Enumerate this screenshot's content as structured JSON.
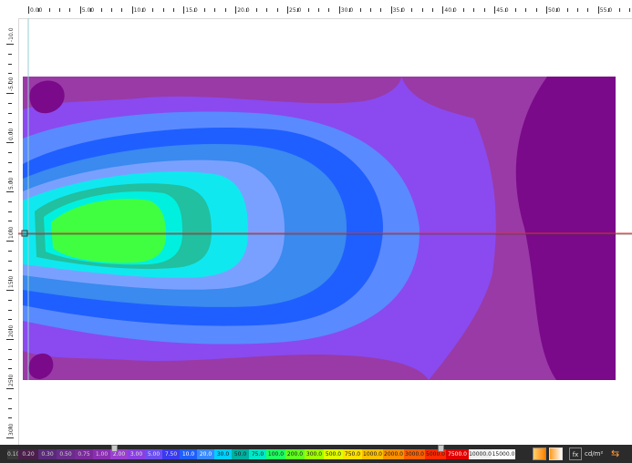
{
  "rulers": {
    "top_labels": [
      "0.00",
      "5.00",
      "10.0",
      "15.0",
      "20.0",
      "25.0",
      "30.0",
      "35.0",
      "40.0",
      "45.0",
      "50.0",
      "55.0"
    ],
    "left_labels": [
      "-10.0",
      "-5.00",
      "0.00",
      "5.00",
      "10.0",
      "15.0",
      "20.0",
      "25.0",
      "30.0"
    ]
  },
  "legend": {
    "steps": [
      {
        "label": "0.10",
        "color": "#3a3a3a",
        "text": "#d0d0d0"
      },
      {
        "label": "0.20",
        "color": "#4a1f4a",
        "text": "#d0d0d0"
      },
      {
        "label": "0.30",
        "color": "#5a2a7a",
        "text": "#d0d0d0"
      },
      {
        "label": "0.50",
        "color": "#6a2d8a",
        "text": "#d0d0d0"
      },
      {
        "label": "0.75",
        "color": "#7a2a9a",
        "text": "#d0d0d0"
      },
      {
        "label": "1.00",
        "color": "#8a2fb0",
        "text": "#d0d0d0"
      },
      {
        "label": "2.00",
        "color": "#9a3fcf",
        "text": "#e0e0e0"
      },
      {
        "label": "3.00",
        "color": "#8a3fe0",
        "text": "#e0e0e0"
      },
      {
        "label": "5.00",
        "color": "#6a4ff0",
        "text": "#e0e0e0"
      },
      {
        "label": "7.50",
        "color": "#3a3af0",
        "text": "#e0e0e0"
      },
      {
        "label": "10.0",
        "color": "#1f5fff",
        "text": "#ffffff"
      },
      {
        "label": "20.0",
        "color": "#3a8aff",
        "text": "#ffffff"
      },
      {
        "label": "30.0",
        "color": "#00d0ff",
        "text": "#1a1a1a"
      },
      {
        "label": "50.0",
        "color": "#00b0a0",
        "text": "#1a1a1a"
      },
      {
        "label": "75.0",
        "color": "#00e8c8",
        "text": "#1a1a1a"
      },
      {
        "label": "100.0",
        "color": "#20ff60",
        "text": "#1a1a1a"
      },
      {
        "label": "200.0",
        "color": "#60ff20",
        "text": "#1a1a1a"
      },
      {
        "label": "300.0",
        "color": "#a0ff00",
        "text": "#1a1a1a"
      },
      {
        "label": "500.0",
        "color": "#e0ff00",
        "text": "#1a1a1a"
      },
      {
        "label": "750.0",
        "color": "#ffe000",
        "text": "#1a1a1a"
      },
      {
        "label": "1000.0",
        "color": "#ffc000",
        "text": "#1a1a1a"
      },
      {
        "label": "2000.0",
        "color": "#ff9000",
        "text": "#1a1a1a"
      },
      {
        "label": "3000.0",
        "color": "#ff6000",
        "text": "#1a1a1a"
      },
      {
        "label": "5000.0",
        "color": "#ff2a00",
        "text": "#1a1a1a"
      },
      {
        "label": "7500.0",
        "color": "#e00000",
        "text": "#ffffff"
      },
      {
        "label": "10000.0",
        "color": "#f0f0f0",
        "text": "#1a1a1a"
      },
      {
        "label": "15000.0",
        "color": "#ffffff",
        "text": "#1a1a1a"
      }
    ],
    "unit": "cd/m²",
    "fx_label": "fx"
  },
  "plot_colors": {
    "level_0": "#7a0a8a",
    "level_1": "#9a3aa6",
    "level_2": "#8a4af0",
    "level_3": "#5a8aff",
    "level_4": "#1f5fff",
    "level_5": "#3a8aef",
    "level_6": "#7aa0ff",
    "level_7": "#10e8f0",
    "level_8": "#20c0a0",
    "level_9": "#00f0e0",
    "level_10": "#40ff40",
    "guide_line": "#e03030"
  }
}
